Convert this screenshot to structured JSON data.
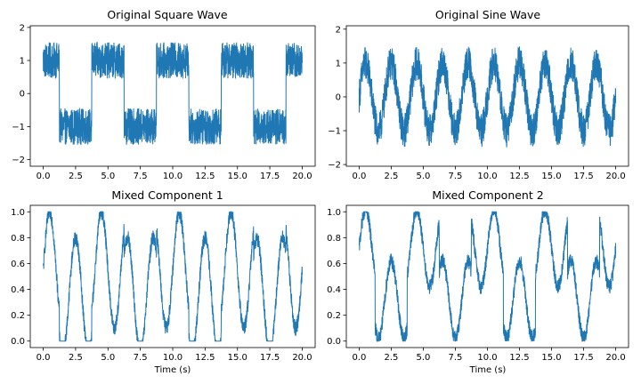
{
  "chart_data": [
    {
      "type": "line",
      "title": "Original Square Wave",
      "xlabel": "",
      "ylabel": "",
      "xlim": [
        -1.0,
        21.0
      ],
      "ylim": [
        -2.2,
        2.05
      ],
      "xticks": [
        "0.0",
        "2.5",
        "5.0",
        "7.5",
        "10.0",
        "12.5",
        "15.0",
        "17.5",
        "20.0"
      ],
      "yticks": [
        "−2",
        "−1",
        "0",
        "1",
        "2"
      ],
      "grid": false,
      "signal": "square",
      "period": 5.0,
      "amplitude": 1.0,
      "noise_amplitude": 0.55,
      "x": [
        0.0,
        1.25,
        1.25,
        3.75,
        3.75,
        6.25,
        6.25,
        8.75,
        8.75,
        11.25,
        11.25,
        13.75,
        13.75,
        16.25,
        16.25,
        18.75,
        18.75,
        20.0
      ],
      "y": [
        1,
        1,
        -1,
        -1,
        1,
        1,
        -1,
        -1,
        1,
        1,
        -1,
        -1,
        1,
        1,
        -1,
        -1,
        1,
        1
      ],
      "color": "#1f77b4"
    },
    {
      "type": "line",
      "title": "Original Sine Wave",
      "xlabel": "",
      "ylabel": "",
      "xlim": [
        -1.0,
        21.0
      ],
      "ylim": [
        -2.05,
        2.1
      ],
      "xticks": [
        "0.0",
        "2.5",
        "5.0",
        "7.5",
        "10.0",
        "12.5",
        "15.0",
        "17.5",
        "20.0"
      ],
      "yticks": [
        "−2",
        "−1",
        "0",
        "1",
        "2"
      ],
      "grid": false,
      "signal": "sine",
      "period": 2.0,
      "amplitude": 1.0,
      "noise_amplitude": 0.5,
      "x": [
        0.0,
        0.5,
        1.0,
        1.5,
        2.0
      ],
      "y": [
        0,
        1,
        0,
        -1,
        0
      ],
      "color": "#1f77b4"
    },
    {
      "type": "line",
      "title": "Mixed Component 1",
      "xlabel": "Time (s)",
      "ylabel": "",
      "xlim": [
        -1.0,
        21.0
      ],
      "ylim": [
        -0.05,
        1.05
      ],
      "xticks": [
        "0.0",
        "2.5",
        "5.0",
        "7.5",
        "10.0",
        "12.5",
        "15.0",
        "17.5",
        "20.0"
      ],
      "yticks": [
        "0.0",
        "0.2",
        "0.4",
        "0.6",
        "0.8",
        "1.0"
      ],
      "grid": false,
      "signal": "mix",
      "mix_square_weight": 0.1,
      "mix_sine_weight": 0.45,
      "mix_offset": 0.45,
      "noise_amplitude": 0.06,
      "color": "#1f77b4"
    },
    {
      "type": "line",
      "title": "Mixed Component 2",
      "xlabel": "Time (s)",
      "ylabel": "",
      "xlim": [
        -1.0,
        21.0
      ],
      "ylim": [
        -0.05,
        1.05
      ],
      "xticks": [
        "0.0",
        "2.5",
        "5.0",
        "7.5",
        "10.0",
        "12.5",
        "15.0",
        "17.5",
        "20.0"
      ],
      "yticks": [
        "0.0",
        "0.2",
        "0.4",
        "0.6",
        "0.8",
        "1.0"
      ],
      "grid": false,
      "signal": "mix",
      "mix_square_weight": 0.2,
      "mix_sine_weight": 0.3,
      "mix_offset": 0.52,
      "noise_amplitude": 0.06,
      "color": "#1f77b4"
    }
  ]
}
